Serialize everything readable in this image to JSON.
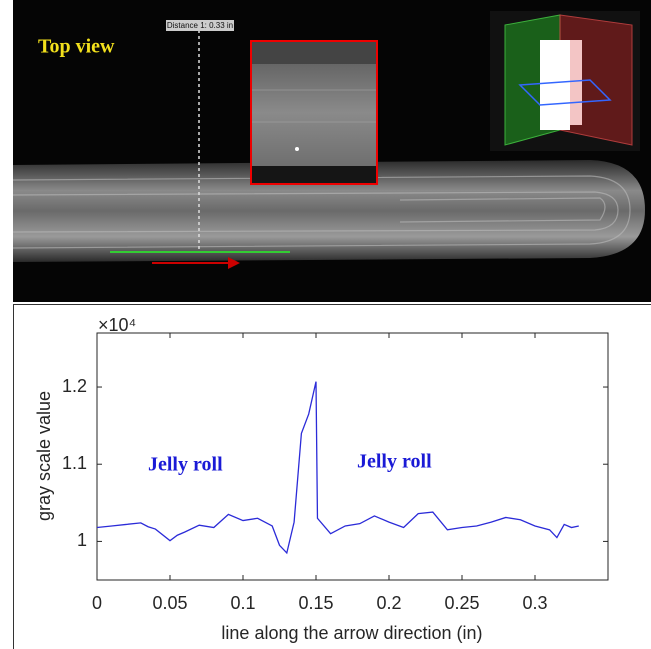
{
  "image": {
    "title": "Top view",
    "measurement": "Distance 1: 0.33 in"
  },
  "chart_data": {
    "type": "line",
    "y_multiplier": "×10⁴",
    "xlabel": "line along the arrow direction (in)",
    "ylabel": "gray scale value",
    "annotations": [
      "Jelly roll",
      "Jelly roll"
    ],
    "x": [
      0,
      0.01,
      0.02,
      0.03,
      0.035,
      0.04,
      0.05,
      0.055,
      0.06,
      0.07,
      0.08,
      0.09,
      0.1,
      0.11,
      0.12,
      0.125,
      0.13,
      0.135,
      0.14,
      0.145,
      0.15,
      0.151,
      0.16,
      0.17,
      0.18,
      0.19,
      0.2,
      0.21,
      0.22,
      0.23,
      0.24,
      0.25,
      0.26,
      0.27,
      0.28,
      0.29,
      0.3,
      0.31,
      0.315,
      0.32,
      0.325,
      0.33
    ],
    "series": [
      {
        "color": "#2b2bd8",
        "values": [
          1.018,
          1.02,
          1.022,
          1.024,
          1.019,
          1.016,
          1.001,
          1.008,
          1.012,
          1.021,
          1.018,
          1.035,
          1.027,
          1.03,
          1.02,
          0.995,
          0.985,
          1.025,
          1.14,
          1.165,
          1.207,
          1.03,
          1.01,
          1.02,
          1.023,
          1.033,
          1.025,
          1.018,
          1.036,
          1.038,
          1.015,
          1.018,
          1.02,
          1.025,
          1.031,
          1.028,
          1.02,
          1.015,
          1.005,
          1.022,
          1.018,
          1.02
        ]
      }
    ],
    "xlim": [
      0,
      0.35
    ],
    "xticks": [
      0,
      0.05,
      0.1,
      0.15,
      0.2,
      0.25,
      0.3
    ],
    "ylim": [
      0.95,
      1.27
    ],
    "yticks": [
      1,
      1.1,
      1.2
    ],
    "grid": false
  }
}
